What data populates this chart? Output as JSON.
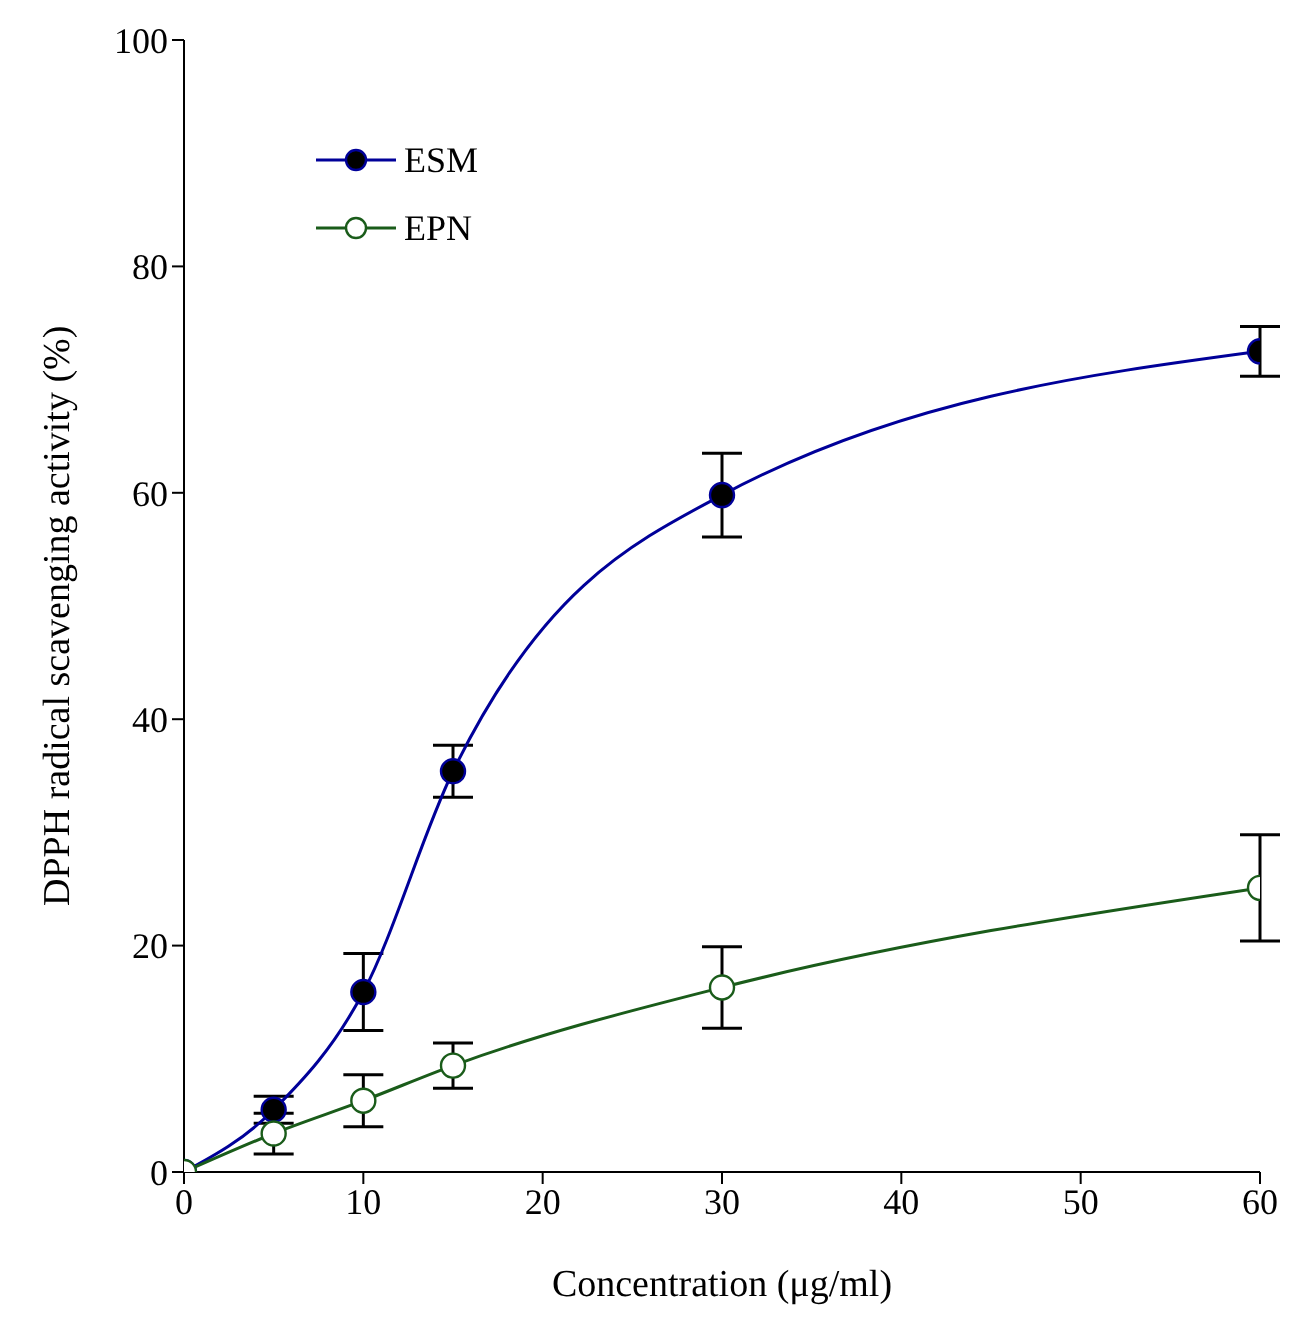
{
  "chart_data": {
    "type": "line",
    "xlabel": "Concentration (μg/ml)",
    "ylabel": "DPPH radical scavenging activity (%)",
    "x": [
      0,
      5,
      10,
      15,
      30,
      60
    ],
    "series": [
      {
        "name": "ESM",
        "color": "#000099",
        "values": [
          0,
          5.5,
          15.9,
          35.4,
          59.8,
          72.5
        ],
        "errors": [
          null,
          1.2,
          3.4,
          2.3,
          3.7,
          2.2
        ]
      },
      {
        "name": "EPN",
        "color": "#1a5c1a",
        "values": [
          0,
          3.4,
          6.3,
          9.4,
          16.3,
          25.1
        ],
        "errors": [
          null,
          1.8,
          2.3,
          2,
          3.6,
          4.7
        ]
      }
    ],
    "xlim": [
      0,
      60
    ],
    "xticks": [
      0,
      10,
      20,
      30,
      40,
      50,
      60
    ],
    "ylim": [
      0,
      100
    ],
    "yticks": [
      0,
      20,
      40,
      60,
      80,
      100
    ],
    "grid": false,
    "legend": "top left",
    "marker": "circle",
    "line_style": "solid"
  }
}
